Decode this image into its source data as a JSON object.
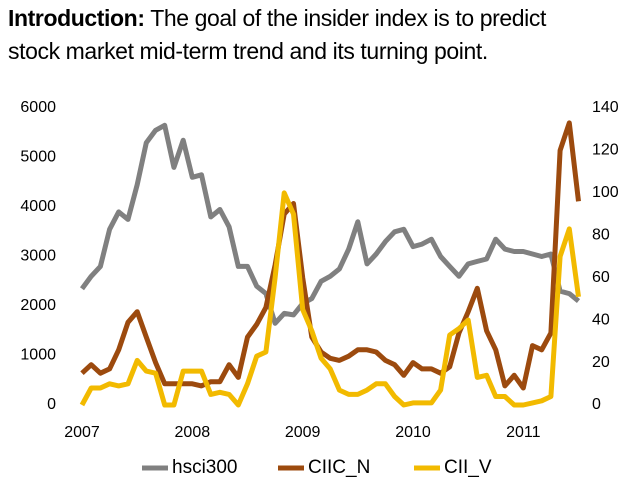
{
  "heading": {
    "label": "Introduction:",
    "text": [
      "The goal of the insider index is to predict",
      "stock market mid-term trend and its turning point."
    ]
  },
  "chart_data": {
    "type": "line",
    "x": [
      2007,
      2007.083,
      2007.167,
      2007.25,
      2007.333,
      2007.417,
      2007.5,
      2007.583,
      2007.667,
      2007.75,
      2007.833,
      2007.917,
      2008,
      2008.083,
      2008.167,
      2008.25,
      2008.333,
      2008.417,
      2008.5,
      2008.583,
      2008.667,
      2008.75,
      2008.833,
      2008.917,
      2009,
      2009.083,
      2009.167,
      2009.25,
      2009.333,
      2009.417,
      2009.5,
      2009.583,
      2009.667,
      2009.75,
      2009.833,
      2009.917,
      2010,
      2010.083,
      2010.167,
      2010.25,
      2010.333,
      2010.417,
      2010.5,
      2010.583,
      2010.667,
      2010.75,
      2010.833,
      2010.917,
      2011,
      2011.083,
      2011.167,
      2011.25,
      2011.333,
      2011.417,
      2011.5
    ],
    "series": [
      {
        "name": "hsci300",
        "color": "#808080",
        "axis": "y",
        "values": [
          2350,
          2600,
          2800,
          3550,
          3900,
          3750,
          4450,
          5300,
          5550,
          5650,
          4800,
          5350,
          4600,
          4650,
          3800,
          3950,
          3600,
          2800,
          2800,
          2400,
          2250,
          1650,
          1850,
          1820,
          2050,
          2150,
          2500,
          2600,
          2750,
          3150,
          3700,
          2850,
          3050,
          3300,
          3500,
          3550,
          3200,
          3250,
          3350,
          3000,
          2800,
          2600,
          2850,
          2900,
          2950,
          3350,
          3150,
          3100,
          3100,
          3050,
          3000,
          3050,
          2300,
          2250,
          2100
        ]
      },
      {
        "name": "CIIC_N",
        "color": "#9c4a0e",
        "axis": "y2",
        "values": [
          15,
          19,
          15,
          17,
          26,
          39,
          44,
          32,
          20,
          10,
          10,
          10,
          10,
          9,
          11,
          11,
          19,
          13,
          32,
          38,
          46,
          66,
          90,
          95,
          60,
          32,
          25,
          22,
          21,
          23,
          26,
          26,
          25,
          21,
          19,
          14,
          20,
          17,
          17,
          15,
          18,
          34,
          44,
          55,
          35,
          26,
          9,
          14,
          8,
          28,
          26,
          34,
          120,
          133,
          96
        ]
      },
      {
        "name": "CII_V",
        "color": "#f2ba00",
        "axis": "y2",
        "values": [
          0,
          8,
          8,
          10,
          9,
          10,
          21,
          16,
          15,
          0,
          0,
          16,
          16,
          16,
          5,
          6,
          5,
          0,
          10,
          23,
          25,
          60,
          100,
          90,
          45,
          35,
          22,
          17,
          7,
          5,
          5,
          7,
          10,
          10,
          4,
          0,
          1,
          1,
          1,
          7,
          33,
          36,
          40,
          13,
          14,
          4,
          4,
          0,
          0,
          1,
          2,
          4,
          70,
          83,
          51
        ]
      }
    ],
    "xlim": [
      2007,
      2011.55
    ],
    "xticks": [
      2007,
      2008,
      2009,
      2010,
      2011
    ],
    "ylim": [
      0,
      6000
    ],
    "yticks": [
      0,
      1000,
      2000,
      3000,
      4000,
      5000,
      6000
    ],
    "y2lim": [
      0,
      140
    ],
    "y2ticks": [
      0,
      20,
      40,
      60,
      80,
      100,
      120,
      140
    ],
    "grid": false,
    "legend": "bottom"
  }
}
